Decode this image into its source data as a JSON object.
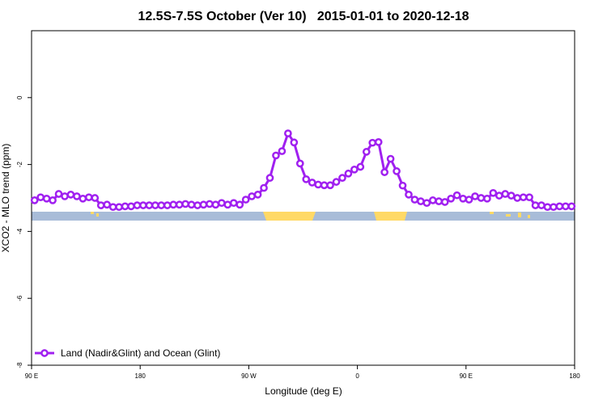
{
  "chart_data": {
    "type": "line",
    "title": "12.5S-7.5S October (Ver 10)   2015-01-01 to 2020-12-18",
    "x_label": "Longitude (deg E)",
    "y_label": "XCO2 - MLO trend (ppm)",
    "x": [
      92.5,
      97.5,
      102.5,
      107.5,
      112.5,
      117.5,
      122.5,
      127.5,
      132.5,
      137.5,
      142.5,
      147.5,
      152.5,
      157.5,
      162.5,
      167.5,
      172.5,
      177.5,
      182.5,
      187.5,
      192.5,
      197.5,
      202.5,
      207.5,
      212.5,
      217.5,
      222.5,
      227.5,
      232.5,
      237.5,
      242.5,
      247.5,
      252.5,
      257.5,
      262.5,
      267.5,
      272.5,
      277.5,
      282.5,
      287.5,
      292.5,
      297.5,
      302.5,
      307.5,
      312.5,
      317.5,
      322.5,
      327.5,
      332.5,
      337.5,
      342.5,
      347.5,
      352.5,
      357.5,
      362.5,
      367.5,
      372.5,
      377.5,
      382.5,
      387.5,
      392.5,
      397.5,
      402.5,
      407.5,
      412.5,
      417.5,
      422.5,
      427.5,
      432.5,
      437.5,
      442.5,
      447.5,
      452.5,
      457.5,
      462.5,
      467.5,
      472.5,
      477.5,
      482.5,
      487.5,
      492.5,
      497.5,
      502.5,
      507.5,
      512.5,
      517.5,
      522.5,
      527.5,
      532.5,
      537.5
    ],
    "series": [
      {
        "name": "Land (Nadir&Glint) and Ocean (Glint)",
        "color": "#a020f0",
        "values": [
          -3.07,
          -2.98,
          -3.02,
          -3.07,
          -2.88,
          -2.95,
          -2.9,
          -2.95,
          -3.02,
          -2.98,
          -3.0,
          -3.22,
          -3.2,
          -3.27,
          -3.27,
          -3.25,
          -3.25,
          -3.22,
          -3.22,
          -3.22,
          -3.22,
          -3.22,
          -3.22,
          -3.2,
          -3.2,
          -3.18,
          -3.2,
          -3.22,
          -3.2,
          -3.18,
          -3.2,
          -3.15,
          -3.2,
          -3.15,
          -3.2,
          -3.05,
          -2.95,
          -2.9,
          -2.7,
          -2.4,
          -1.73,
          -1.6,
          -1.07,
          -1.34,
          -1.97,
          -2.44,
          -2.54,
          -2.6,
          -2.62,
          -2.62,
          -2.52,
          -2.4,
          -2.27,
          -2.15,
          -2.07,
          -1.62,
          -1.35,
          -1.33,
          -2.23,
          -1.83,
          -2.2,
          -2.63,
          -2.9,
          -3.05,
          -3.1,
          -3.15,
          -3.07,
          -3.1,
          -3.12,
          -3.02,
          -2.92,
          -3.02,
          -3.05,
          -2.95,
          -3.0,
          -3.02,
          -2.85,
          -2.93,
          -2.88,
          -2.93,
          -3.0,
          -2.98,
          -2.98,
          -3.22,
          -3.22,
          -3.27,
          -3.27,
          -3.25,
          -3.25,
          -3.25
        ]
      }
    ],
    "xlim": [
      90,
      540
    ],
    "xticks": [
      {
        "value": 90,
        "label": "90 E"
      },
      180,
      {
        "value": 270,
        "label": "90 W"
      },
      {
        "value": 360,
        "label": "0"
      },
      {
        "value": 450,
        "label": "90 E"
      },
      {
        "value": 540,
        "label": "180"
      }
    ],
    "ylim": [
      -8,
      2
    ],
    "yticks": [
      -8,
      -6,
      -4,
      -2,
      0
    ],
    "legend": "bottom-left"
  }
}
